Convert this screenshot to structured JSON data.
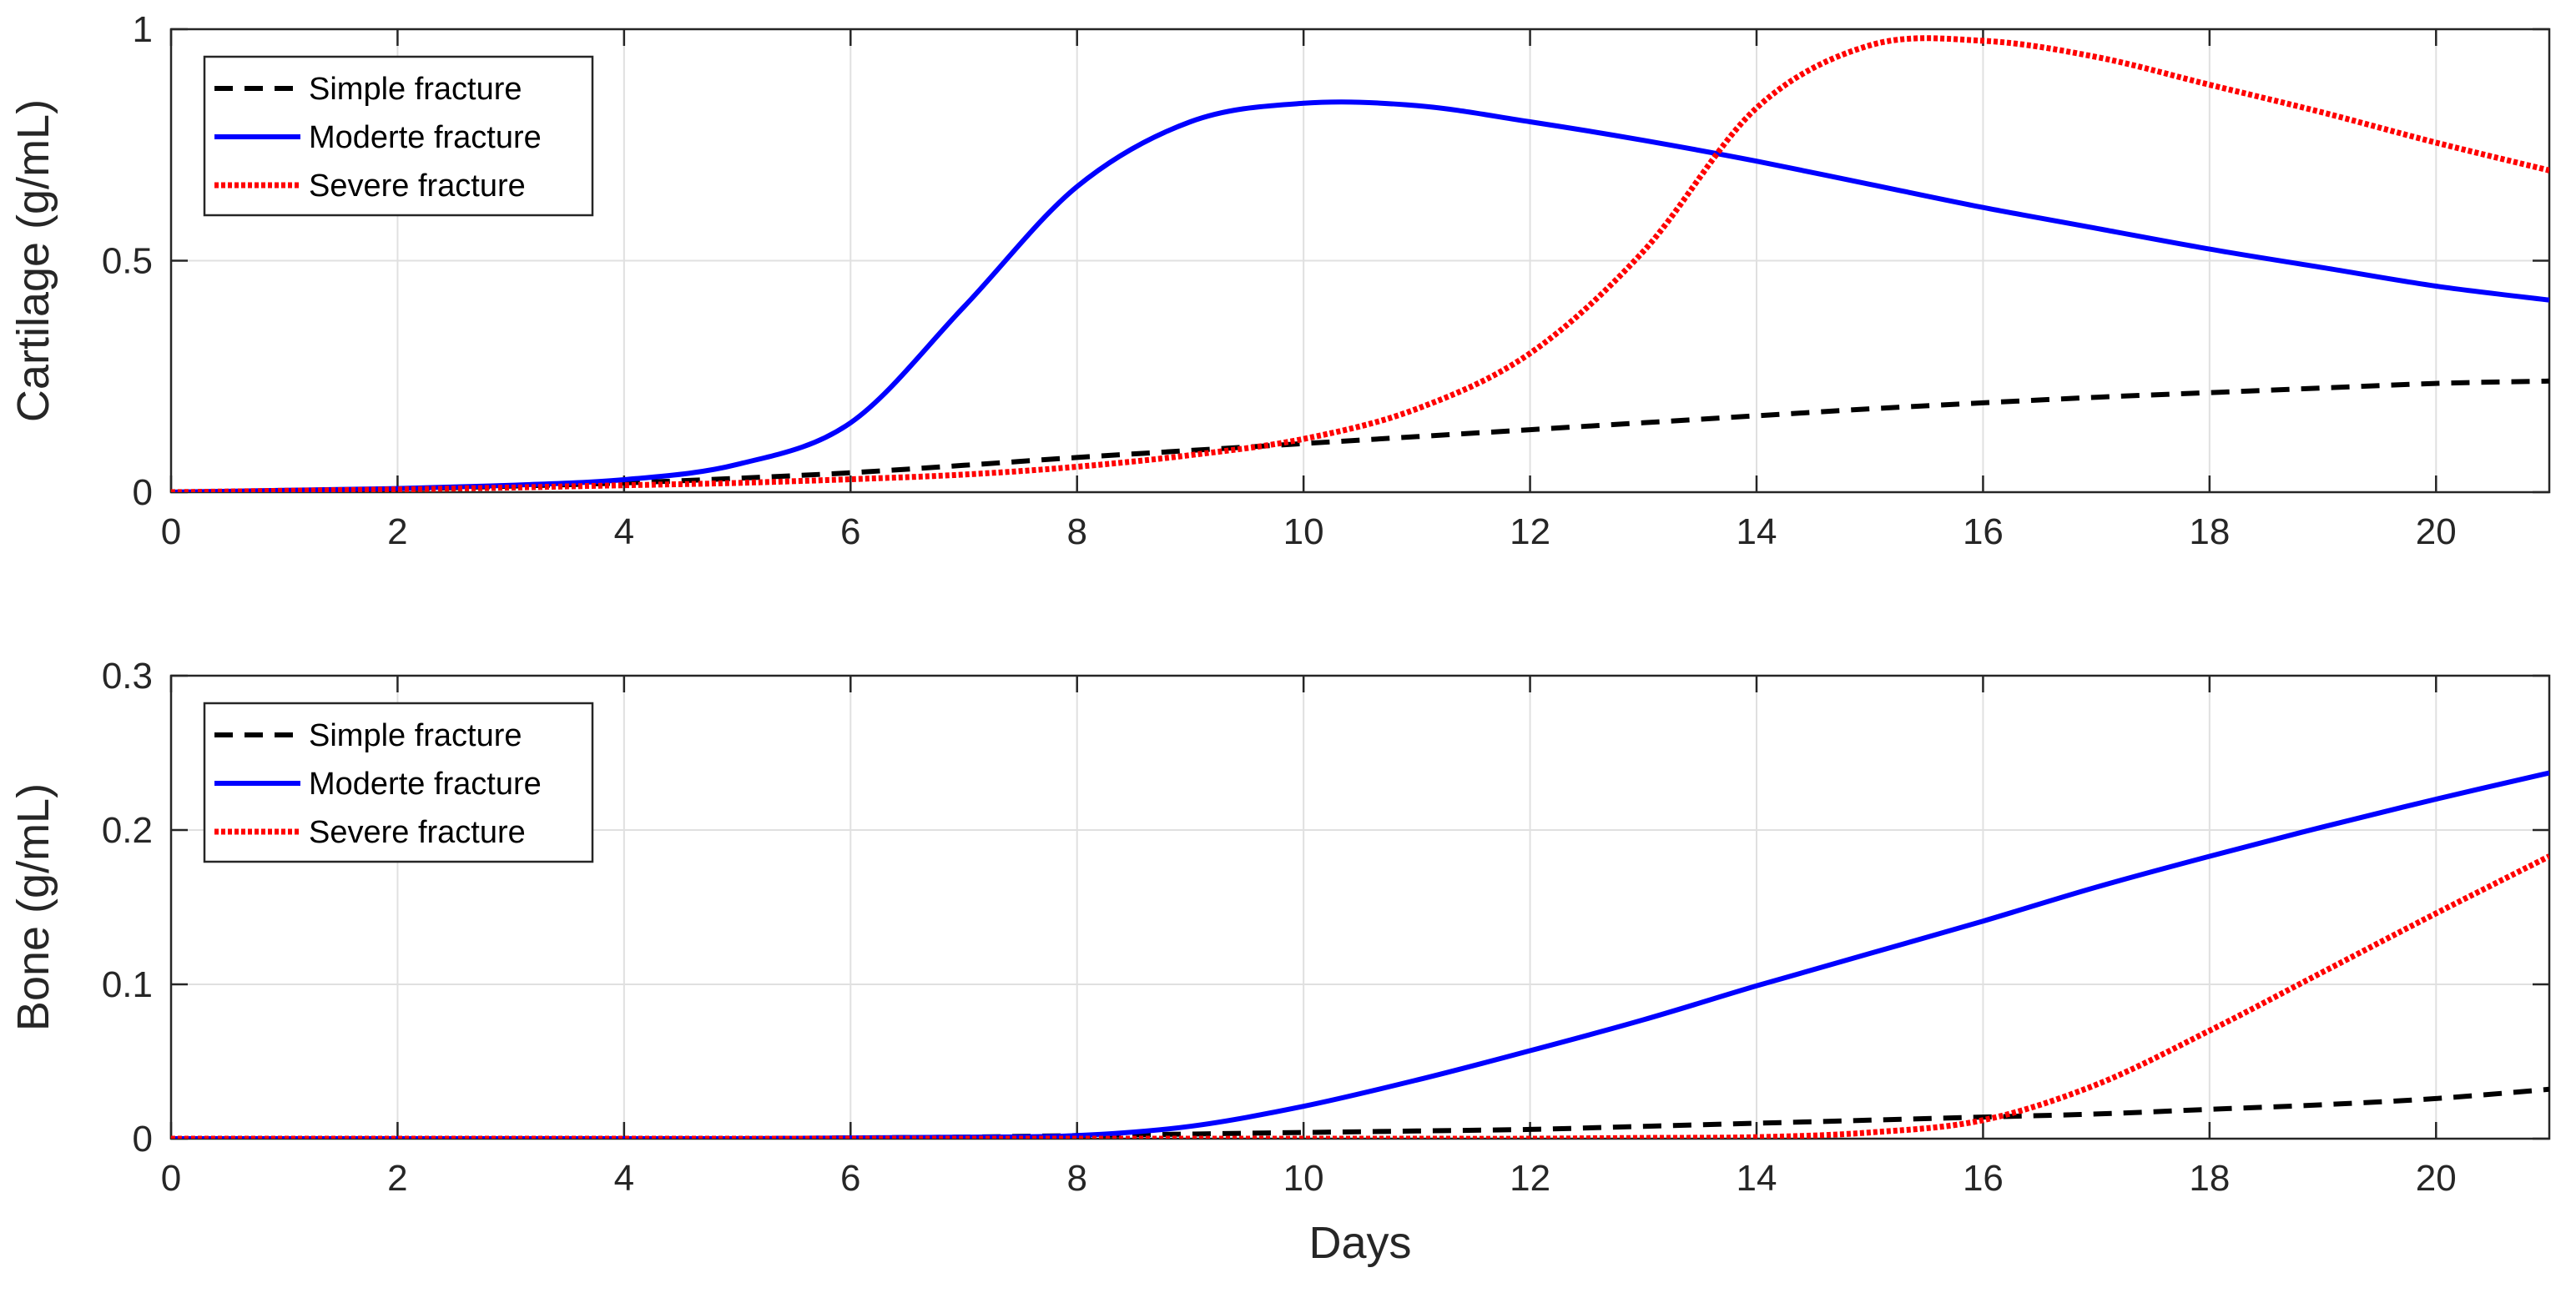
{
  "chart_data": [
    {
      "type": "line",
      "ylabel": "Cartilage (g/mL)",
      "xlabel": "",
      "xlim": [
        0,
        21
      ],
      "ylim": [
        0,
        1
      ],
      "xticks": [
        0,
        2,
        4,
        6,
        8,
        10,
        12,
        14,
        16,
        18,
        20
      ],
      "yticks": [
        0,
        0.5,
        1
      ],
      "ytick_labels": [
        "0",
        "0.5",
        "1"
      ],
      "grid": true,
      "legend_position": "top-left",
      "x": [
        0,
        1,
        2,
        3,
        4,
        5,
        6,
        7,
        8,
        9,
        10,
        11,
        12,
        13,
        14,
        15,
        16,
        17,
        18,
        19,
        20,
        21
      ],
      "series": [
        {
          "name": "Simple fracture",
          "color": "#000000",
          "style": "dashed",
          "values": [
            0,
            0.003,
            0.007,
            0.013,
            0.02,
            0.03,
            0.042,
            0.058,
            0.075,
            0.09,
            0.105,
            0.12,
            0.135,
            0.15,
            0.165,
            0.18,
            0.193,
            0.205,
            0.215,
            0.225,
            0.235,
            0.24
          ]
        },
        {
          "name": "Moderte fracture",
          "color": "#0000ff",
          "style": "solid",
          "values": [
            0,
            0.004,
            0.008,
            0.015,
            0.027,
            0.06,
            0.15,
            0.4,
            0.66,
            0.8,
            0.84,
            0.835,
            0.8,
            0.76,
            0.715,
            0.665,
            0.615,
            0.57,
            0.525,
            0.485,
            0.445,
            0.415
          ]
        },
        {
          "name": "Severe fracture",
          "color": "#ff0000",
          "style": "dotted",
          "values": [
            0,
            0.003,
            0.006,
            0.01,
            0.015,
            0.02,
            0.028,
            0.038,
            0.055,
            0.08,
            0.115,
            0.18,
            0.3,
            0.52,
            0.83,
            0.965,
            0.975,
            0.94,
            0.88,
            0.82,
            0.755,
            0.695
          ]
        }
      ]
    },
    {
      "type": "line",
      "ylabel": "Bone (g/mL)",
      "xlabel": "Days",
      "xlim": [
        0,
        21
      ],
      "ylim": [
        0,
        0.3
      ],
      "xticks": [
        0,
        2,
        4,
        6,
        8,
        10,
        12,
        14,
        16,
        18,
        20
      ],
      "yticks": [
        0,
        0.1,
        0.2,
        0.3
      ],
      "ytick_labels": [
        "0",
        "0.1",
        "0.2",
        "0.3"
      ],
      "grid": true,
      "legend_position": "top-left",
      "x": [
        0,
        1,
        2,
        3,
        4,
        5,
        6,
        7,
        8,
        9,
        10,
        11,
        12,
        13,
        14,
        15,
        16,
        17,
        18,
        19,
        20,
        21
      ],
      "series": [
        {
          "name": "Simple fracture",
          "color": "#000000",
          "style": "dashed",
          "values": [
            0,
            0,
            0,
            0,
            0,
            0,
            0.0005,
            0.001,
            0.002,
            0.003,
            0.004,
            0.005,
            0.006,
            0.008,
            0.01,
            0.012,
            0.014,
            0.016,
            0.019,
            0.022,
            0.026,
            0.032
          ]
        },
        {
          "name": "Moderte fracture",
          "color": "#0000ff",
          "style": "solid",
          "values": [
            0,
            0,
            0,
            0,
            0,
            0,
            0.0005,
            0.001,
            0.002,
            0.008,
            0.021,
            0.038,
            0.057,
            0.077,
            0.099,
            0.12,
            0.141,
            0.163,
            0.183,
            0.202,
            0.22,
            0.237
          ]
        },
        {
          "name": "Severe fracture",
          "color": "#ff0000",
          "style": "dotted",
          "values": [
            0,
            0,
            0,
            0,
            0,
            0,
            0,
            0,
            0,
            0,
            0,
            0,
            0,
            0.0005,
            0.001,
            0.004,
            0.012,
            0.035,
            0.07,
            0.108,
            0.146,
            0.183
          ]
        }
      ]
    }
  ]
}
